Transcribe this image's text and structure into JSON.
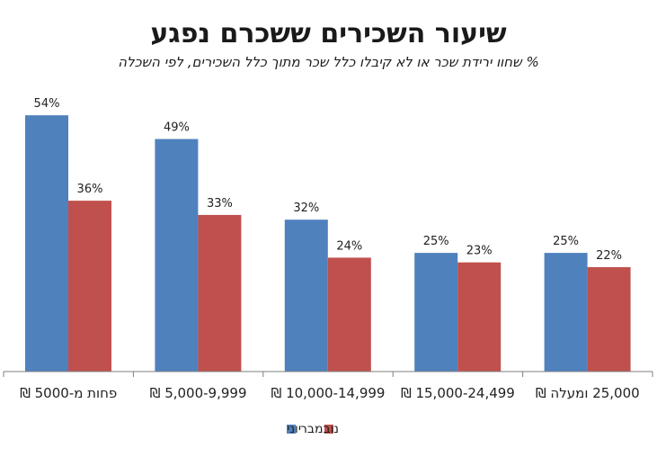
{
  "chart_data": {
    "type": "bar",
    "title": "שיעור השכירים ששכרם נפגע",
    "subtitle": "% שחוו ירידת שכר או לא קיבלו כלל שכר מתוך כלל השכירים, לפי השכלה",
    "categories": [
      "פחות מ-5000 ₪",
      "5,000-9,999 ₪",
      "10,000-14,999 ₪",
      "15,000-24,499 ₪",
      "25,000 ומעלה ₪"
    ],
    "series": [
      {
        "name": "יוני",
        "values": [
          54,
          49,
          32,
          25,
          25
        ],
        "labels": [
          "54%",
          "49%",
          "32%",
          "25%",
          "25%"
        ],
        "color": "#4f81bd"
      },
      {
        "name": "נובמבר",
        "values": [
          36,
          33,
          24,
          23,
          22
        ],
        "labels": [
          "36%",
          "33%",
          "24%",
          "23%",
          "22%"
        ],
        "color": "#c0504d"
      }
    ],
    "ylim": [
      0,
      60
    ],
    "grid": false,
    "legend_position": "bottom"
  }
}
